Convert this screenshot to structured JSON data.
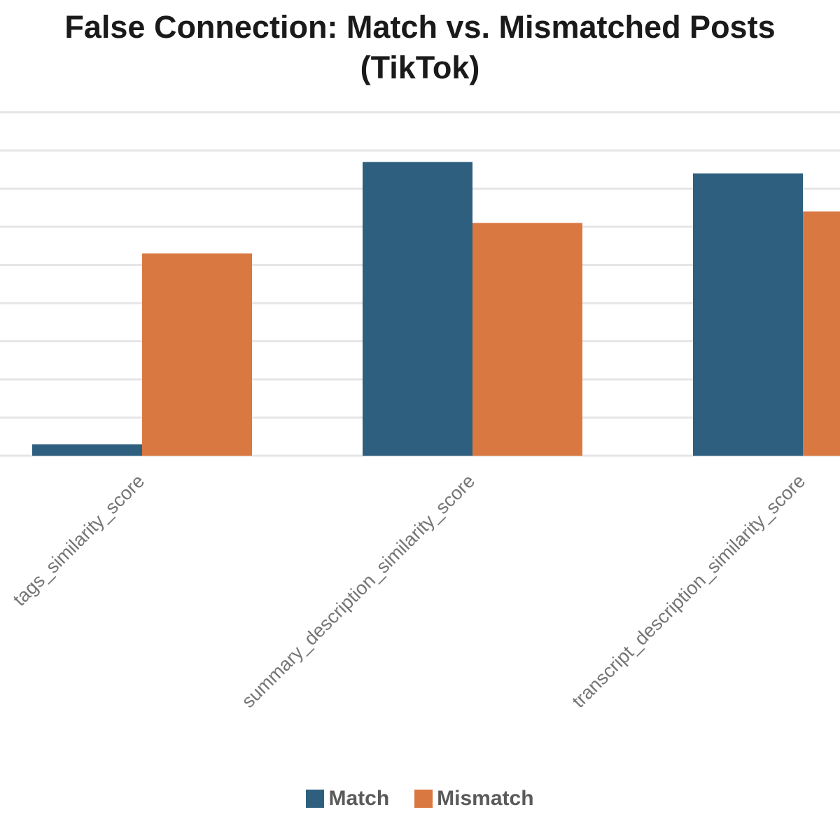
{
  "colors": {
    "match": "#2e5f7f",
    "mismatch": "#d97841",
    "grid": "#e6e6e6",
    "tick_label": "#757575"
  },
  "chart_data": {
    "type": "bar",
    "title_lines": [
      "False Connection: Match vs. Mismatched Posts",
      "(TikTok)"
    ],
    "xlabel": "",
    "ylabel": "",
    "ylim": [
      0,
      0.9
    ],
    "grid": true,
    "legend_position": "bottom",
    "categories": [
      "tags_similarity_score",
      "summary_description_similarity_score",
      "transcript_description_similarity_score"
    ],
    "series": [
      {
        "name": "Match",
        "values": [
          0.03,
          0.77,
          0.74
        ]
      },
      {
        "name": "Mismatch",
        "values": [
          0.53,
          0.61,
          0.64
        ]
      }
    ]
  }
}
